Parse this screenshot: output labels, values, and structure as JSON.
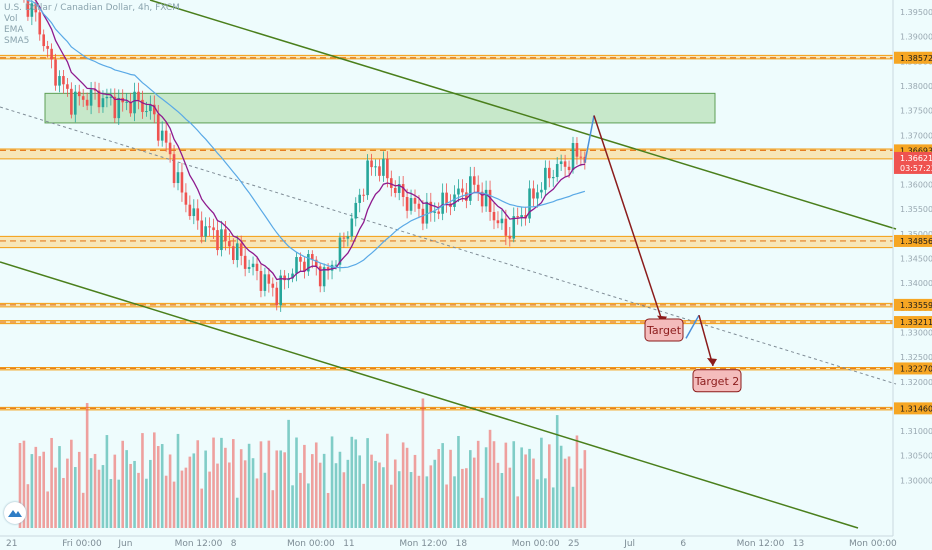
{
  "header": {
    "symbol": "U.S. Dollar / Canadian Dollar, 4h, FXCM",
    "indicators": [
      "Vol",
      "EMA",
      "SMA5"
    ]
  },
  "colors": {
    "background": "#eefcfd",
    "bull": "#26a69a",
    "bear": "#ef5350",
    "zone_fill": "#ffd480",
    "zone_line": "#f39c12",
    "channel": "#4a7f1c",
    "ema": "#8e1a8e",
    "sma": "#5aa9e6",
    "annotation": "#8b1c1c",
    "projection": "#4a90d9"
  },
  "chart_data": {
    "type": "candlestick",
    "ylim": [
      1.3,
      1.4
    ],
    "price_axis_labels": [
      "1.39500",
      "1.39000",
      "1.38500",
      "1.38000",
      "1.37500",
      "1.37000",
      "1.36500",
      "1.36000",
      "1.35500",
      "1.35000",
      "1.34500",
      "1.34000",
      "1.33500",
      "1.33000",
      "1.32500",
      "1.32000",
      "1.31500",
      "1.31000",
      "1.30500",
      "1.30000"
    ],
    "price_levels": [
      {
        "label": "1.38572",
        "value": 1.38572
      },
      {
        "label": "1.36693",
        "value": 1.36693
      },
      {
        "label": "1.34856",
        "value": 1.34856
      },
      {
        "label": "1.33559",
        "value": 1.33559
      },
      {
        "label": "1.33211",
        "value": 1.33211
      },
      {
        "label": "1.32270",
        "value": 1.3227
      },
      {
        "label": "1.31460",
        "value": 1.3146
      }
    ],
    "current_price": {
      "label": "1.36621",
      "value": 1.36621,
      "countdown": "03:57:22"
    },
    "time_axis_labels": [
      "21",
      "Fri 00:00",
      "Jun",
      "Mon 12:00",
      "8",
      "Mon 00:00",
      "11",
      "Mon 12:00",
      "18",
      "Mon 00:00",
      "25",
      "Jul",
      "6",
      "Mon 12:00",
      "13",
      "Mon 00:00"
    ],
    "zones": [
      {
        "low": 1.3855,
        "high": 1.3862
      },
      {
        "low": 1.3652,
        "high": 1.3672
      },
      {
        "low": 1.3472,
        "high": 1.3495
      },
      {
        "low": 1.3352,
        "high": 1.3359
      },
      {
        "low": 1.3318,
        "high": 1.3324
      },
      {
        "low": 1.3224,
        "high": 1.3229
      },
      {
        "low": 1.3143,
        "high": 1.3148
      }
    ],
    "supply_box": {
      "low": 1.3725,
      "high": 1.3785,
      "label": ""
    },
    "annotations": [
      {
        "text": "Target",
        "price": 1.3305
      },
      {
        "text": "Target 2",
        "price": 1.3202
      }
    ]
  }
}
